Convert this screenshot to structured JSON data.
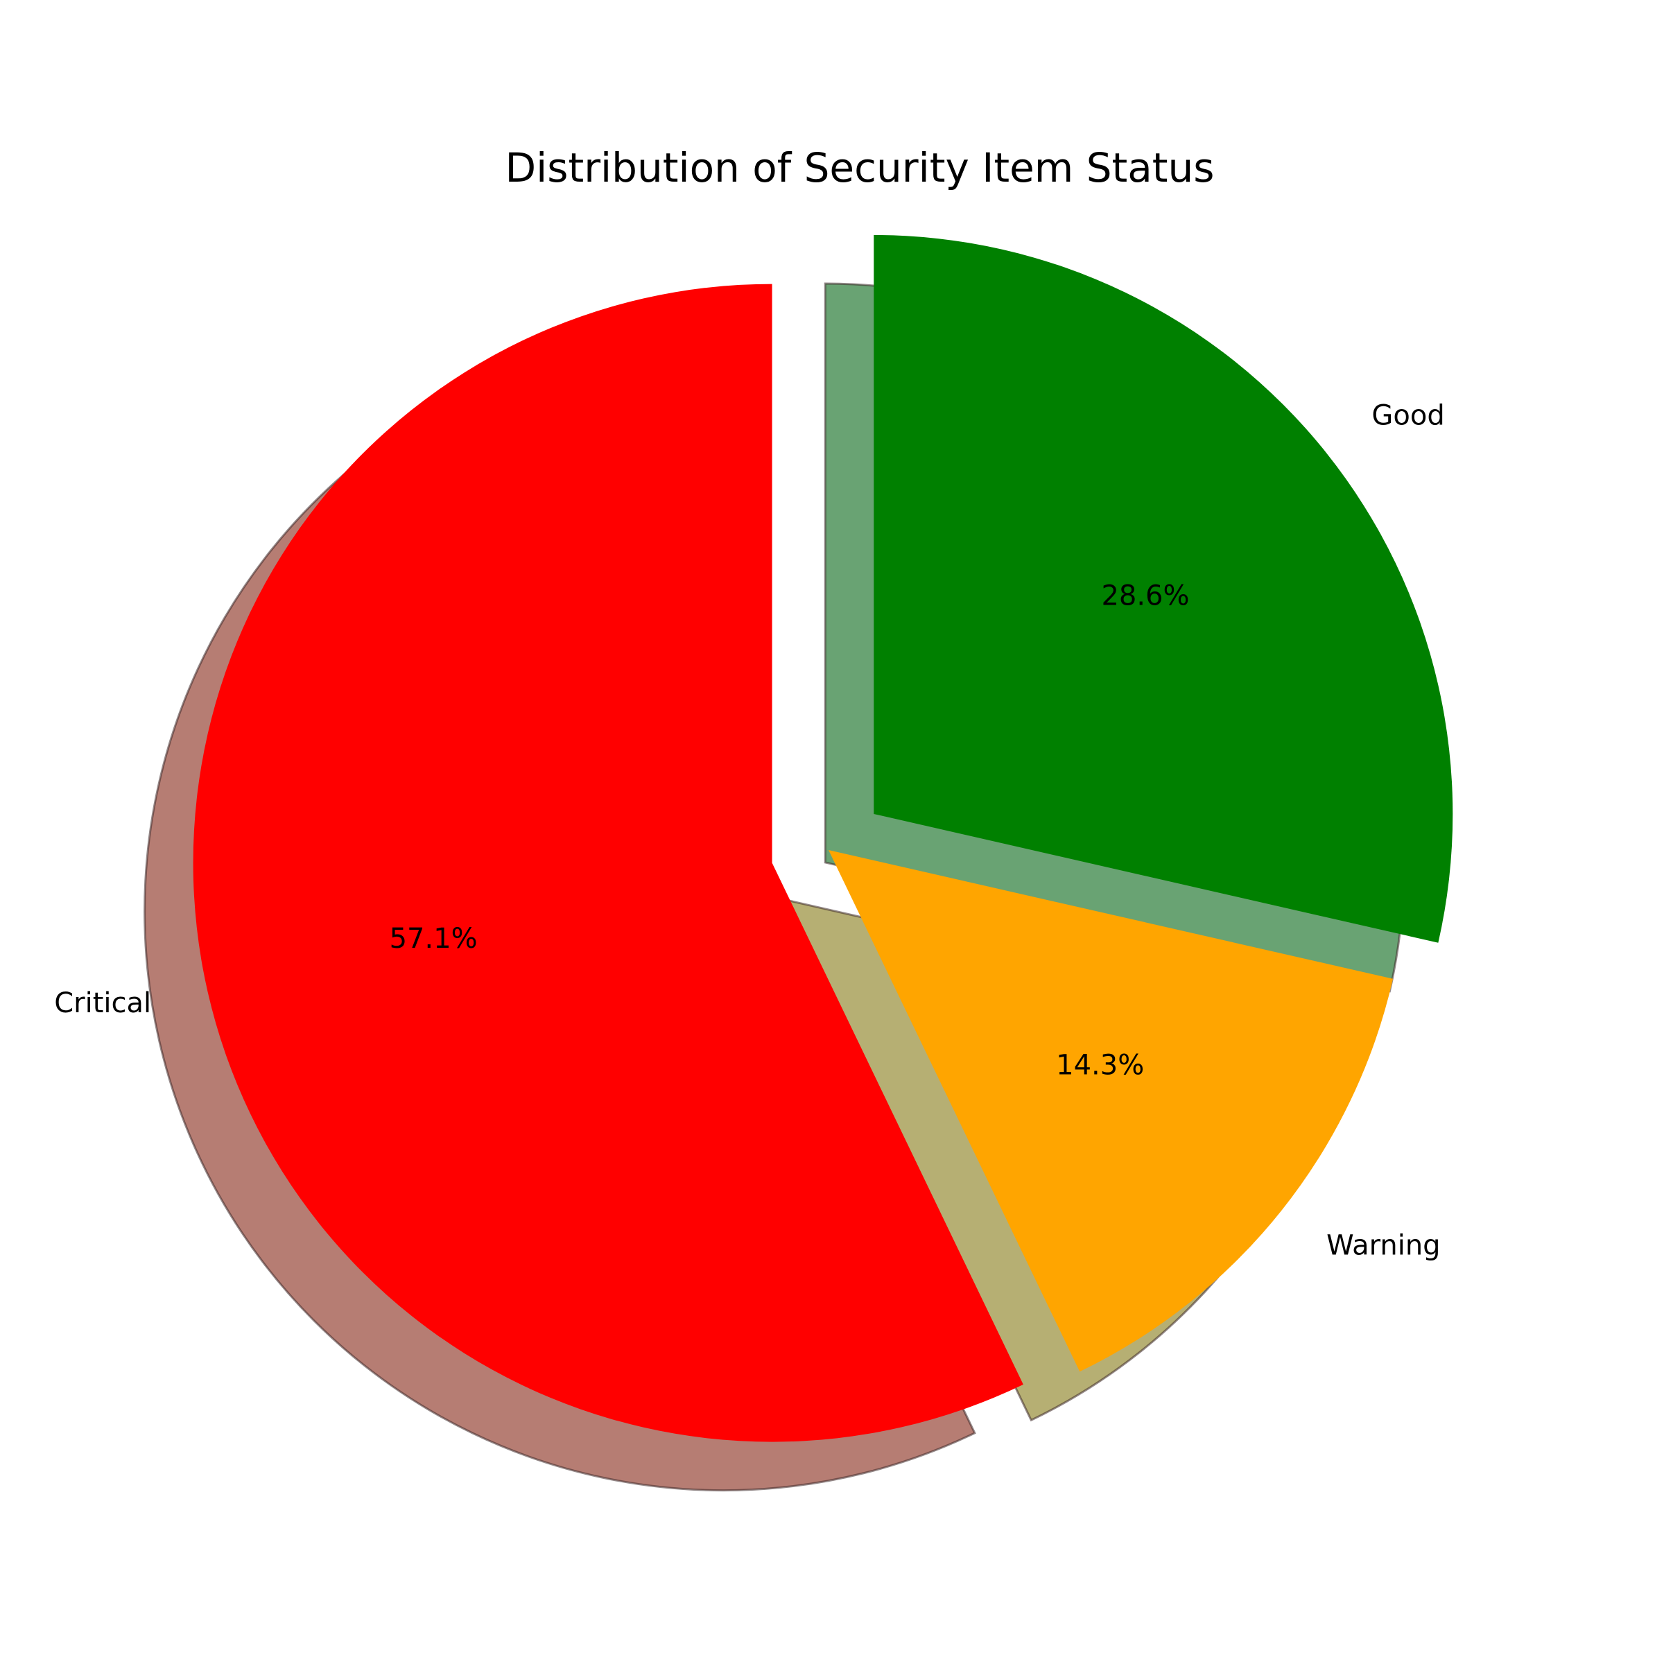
{
  "chart_data": {
    "type": "pie",
    "title": "Distribution of Security Item Status",
    "slices": [
      {
        "label": "Good",
        "value": 2,
        "percent_label": "28.6%",
        "color": "#008000",
        "exploded": true
      },
      {
        "label": "Warning",
        "value": 1,
        "percent_label": "14.3%",
        "color": "#FFA500",
        "exploded": false
      },
      {
        "label": "Critical",
        "value": 4,
        "percent_label": "57.1%",
        "color": "#FF0000",
        "exploded": true
      }
    ],
    "start_angle_deg": 90,
    "direction": "clockwise",
    "shadow": true,
    "legend": "none"
  }
}
